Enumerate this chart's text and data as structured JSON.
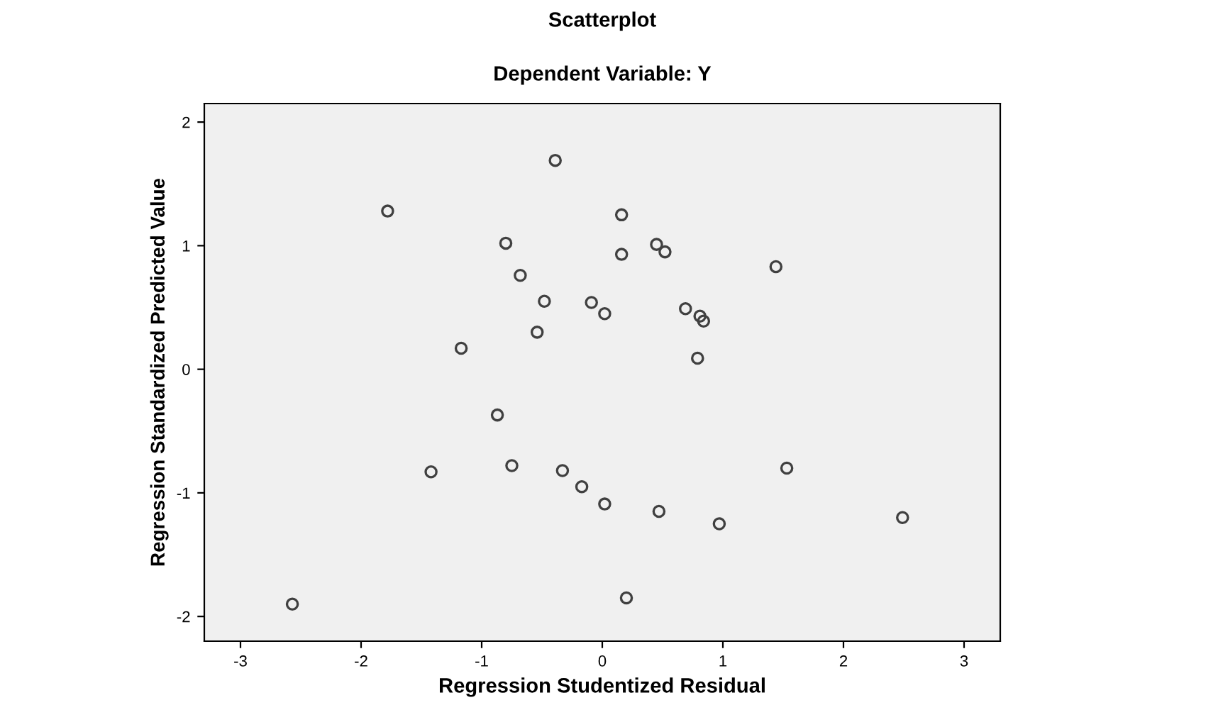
{
  "chart_data": {
    "type": "scatter",
    "title": "Scatterplot",
    "subtitle": "Dependent Variable: Y",
    "xlabel": "Regression Studentized Residual",
    "ylabel": "Regression Standardized Predicted Value",
    "xlim": [
      -3.3,
      3.3
    ],
    "ylim": [
      -2.2,
      2.15
    ],
    "xticks": [
      {
        "value": -3,
        "label": "-3"
      },
      {
        "value": -2,
        "label": "-2"
      },
      {
        "value": -1,
        "label": "-1"
      },
      0,
      1,
      2,
      3
    ],
    "yticks": [
      {
        "value": -2,
        "label": "-2"
      },
      {
        "value": -1,
        "label": "-1"
      },
      0,
      1,
      2
    ],
    "grid": false,
    "marker": "circle",
    "series": [
      {
        "color": "#404040",
        "x": [
          -0.39,
          -1.78,
          0.16,
          -0.8,
          0.45,
          0.52,
          0.16,
          1.44,
          -0.68,
          -0.48,
          -0.09,
          0.02,
          0.69,
          0.81,
          0.84,
          -0.54,
          -1.17,
          0.79,
          -0.87,
          -1.42,
          -0.75,
          -0.33,
          -0.17,
          0.02,
          0.47,
          1.53,
          0.97,
          2.49,
          0.2,
          -2.57
        ],
        "values": [
          1.69,
          1.28,
          1.25,
          1.02,
          1.01,
          0.95,
          0.93,
          0.83,
          0.76,
          0.55,
          0.54,
          0.45,
          0.49,
          0.43,
          0.39,
          0.3,
          0.17,
          0.09,
          -0.37,
          -0.83,
          -0.78,
          -0.82,
          -0.95,
          -1.09,
          -1.15,
          -0.8,
          -1.25,
          -1.2,
          -1.85,
          -1.9
        ]
      }
    ]
  }
}
